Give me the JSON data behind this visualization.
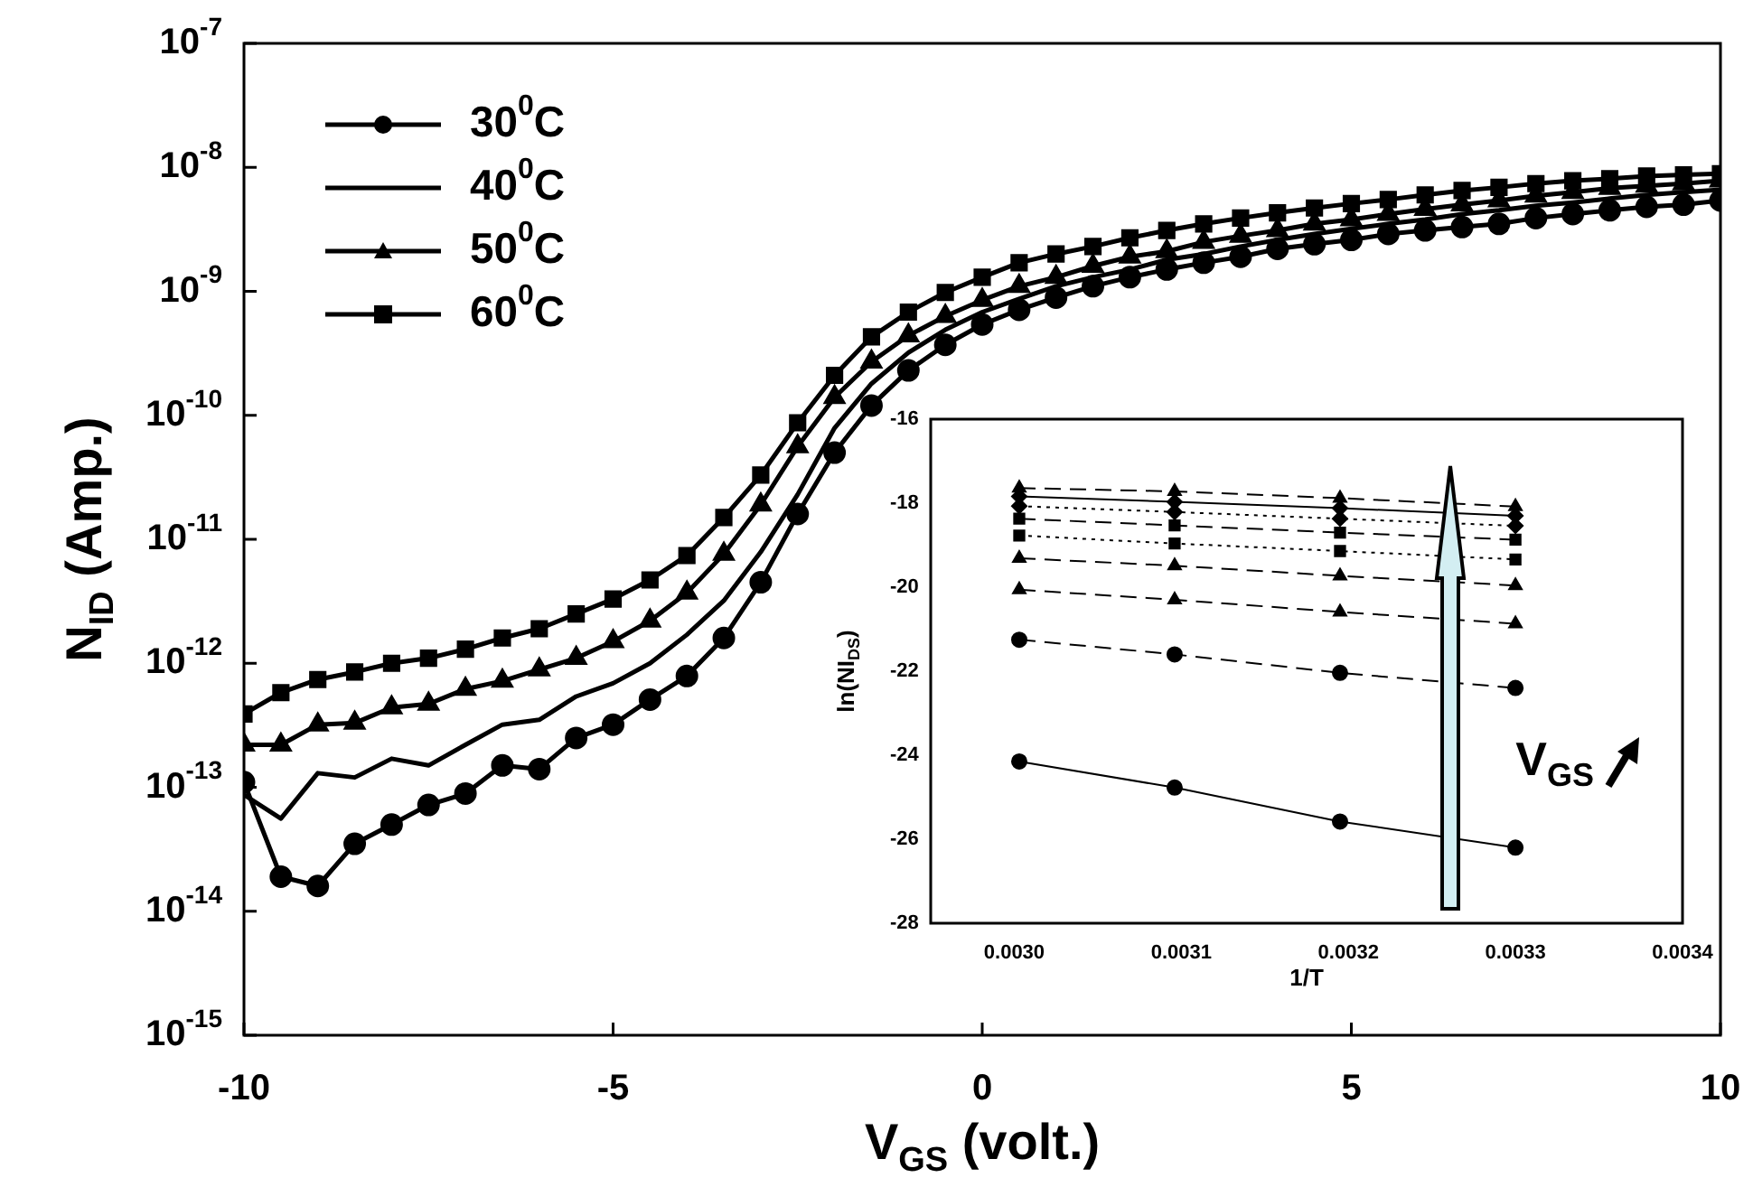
{
  "chart_data": [
    {
      "type": "line",
      "xlabel": "V$_{GS}$ (volt.)",
      "ylabel": "N$_{ID}$ (Amp.)",
      "log": "y",
      "legend": "top left",
      "xlim": [
        -10,
        10
      ],
      "xticks": [
        -10,
        -5,
        0,
        5,
        10
      ],
      "ylim": [
        1e-15,
        1e-07
      ],
      "yticks": [
        {
          "value": 1e-15,
          "label": "10$^{-15}$"
        },
        {
          "value": 1e-14,
          "label": "10$^{-14}$"
        },
        {
          "value": 1e-13,
          "label": "10$^{-13}$"
        },
        {
          "value": 1e-12,
          "label": "10$^{-12}$"
        },
        {
          "value": 1e-11,
          "label": "10$^{-11}$"
        },
        {
          "value": 1e-10,
          "label": "10$^{-10}$"
        },
        {
          "value": 1e-09,
          "label": "10$^{-9}$"
        },
        {
          "value": 1e-08,
          "label": "10$^{-8}$"
        },
        {
          "value": 1e-07,
          "label": "10$^{-7}$"
        }
      ],
      "x": [
        -10,
        -9.5,
        -9,
        -8.5,
        -8,
        -7.5,
        -7,
        -6.5,
        -6,
        -5.5,
        -5,
        -4.5,
        -4,
        -3.5,
        -3,
        -2.5,
        -2,
        -1.5,
        -1,
        -0.5,
        0,
        0.5,
        1,
        1.5,
        2,
        2.5,
        3,
        3.5,
        4,
        4.5,
        5,
        5.5,
        6,
        6.5,
        7,
        7.5,
        8,
        8.5,
        9,
        9.5,
        10
      ],
      "series": [
        {
          "name": "30$^{0}$C",
          "color": "#000000",
          "marker": "circle",
          "values": [
            1.1e-13,
            1.9e-14,
            1.6e-14,
            3.5e-14,
            5e-14,
            7.2e-14,
            8.9e-14,
            1.5e-13,
            1.4e-13,
            2.5e-13,
            3.2e-13,
            5.1e-13,
            7.9e-13,
            1.6e-12,
            4.5e-12,
            1.6e-11,
            5e-11,
            1.2e-10,
            2.3e-10,
            3.7e-10,
            5.4e-10,
            7.1e-10,
            8.9e-10,
            1.1e-09,
            1.3e-09,
            1.5e-09,
            1.7e-09,
            1.9e-09,
            2.2e-09,
            2.4e-09,
            2.6e-09,
            2.9e-09,
            3.1e-09,
            3.3e-09,
            3.5e-09,
            3.9e-09,
            4.2e-09,
            4.5e-09,
            4.8e-09,
            5e-09,
            5.4e-09
          ]
        },
        {
          "name": "40$^{0}$C",
          "color": "#000000",
          "marker": "none",
          "values": [
            8.7e-14,
            5.6e-14,
            1.3e-13,
            1.2e-13,
            1.7e-13,
            1.5e-13,
            2.2e-13,
            3.2e-13,
            3.5e-13,
            5.4e-13,
            6.9e-13,
            1e-12,
            1.7e-12,
            3.2e-12,
            7.9e-12,
            2.3e-11,
            7.9e-11,
            1.8e-10,
            3.2e-10,
            4.9e-10,
            6.8e-10,
            8.7e-10,
            1.1e-09,
            1.3e-09,
            1.5e-09,
            1.8e-09,
            2e-09,
            2.3e-09,
            2.6e-09,
            2.9e-09,
            3.2e-09,
            3.5e-09,
            3.8e-09,
            4.2e-09,
            4.5e-09,
            4.9e-09,
            5.2e-09,
            5.6e-09,
            6e-09,
            6.3e-09,
            6.6e-09
          ]
        },
        {
          "name": "50$^{0}$C",
          "color": "#000000",
          "marker": "triangle",
          "values": [
            2.2e-13,
            2.2e-13,
            3.2e-13,
            3.3e-13,
            4.4e-13,
            4.7e-13,
            6.2e-13,
            7.2e-13,
            8.9e-13,
            1.1e-12,
            1.5e-12,
            2.2e-12,
            3.7e-12,
            7.6e-12,
            1.9e-11,
            5.6e-11,
            1.4e-10,
            2.7e-10,
            4.4e-10,
            6.3e-10,
            8.5e-10,
            1.1e-09,
            1.3e-09,
            1.6e-09,
            1.9e-09,
            2.1e-09,
            2.5e-09,
            2.8e-09,
            3.1e-09,
            3.5e-09,
            3.8e-09,
            4.2e-09,
            4.6e-09,
            5e-09,
            5.4e-09,
            5.9e-09,
            6.3e-09,
            6.8e-09,
            7.1e-09,
            7.4e-09,
            7.8e-09
          ]
        },
        {
          "name": "60$^{0}$C",
          "color": "#000000",
          "marker": "square",
          "values": [
            3.9e-13,
            5.8e-13,
            7.4e-13,
            8.5e-13,
            1e-12,
            1.1e-12,
            1.3e-12,
            1.6e-12,
            1.9e-12,
            2.5e-12,
            3.3e-12,
            4.7e-12,
            7.4e-12,
            1.5e-11,
            3.3e-11,
            8.7e-11,
            2.1e-10,
            4.3e-10,
            6.8e-10,
            9.8e-10,
            1.3e-09,
            1.7e-09,
            2e-09,
            2.3e-09,
            2.7e-09,
            3.1e-09,
            3.5e-09,
            3.9e-09,
            4.3e-09,
            4.7e-09,
            5.1e-09,
            5.5e-09,
            6e-09,
            6.5e-09,
            6.9e-09,
            7.4e-09,
            7.8e-09,
            8.1e-09,
            8.5e-09,
            8.7e-09,
            8.9e-09
          ]
        }
      ]
    },
    {
      "type": "line",
      "xlabel": "1/T",
      "ylabel": "ln(NI$_{DS}$)",
      "annotations": [
        "V$_{GS}$"
      ],
      "xlim": [
        0.00295,
        0.0034
      ],
      "xticks": [
        {
          "value": 0.003,
          "label": "0.0030"
        },
        {
          "value": 0.0031,
          "label": "0.0031"
        },
        {
          "value": 0.0032,
          "label": "0.0032"
        },
        {
          "value": 0.0033,
          "label": "0.0033"
        },
        {
          "value": 0.0034,
          "label": "0.0034"
        }
      ],
      "ylim": [
        -28,
        -16
      ],
      "yticks": [
        -28,
        -26,
        -24,
        -22,
        -20,
        -18,
        -16
      ],
      "x": [
        0.003003,
        0.003096,
        0.003195,
        0.0033
      ],
      "series": [
        {
          "color": "#000000",
          "marker": "circle",
          "line_style": "solid",
          "values": [
            -24.15,
            -24.77,
            -25.58,
            -26.2
          ]
        },
        {
          "color": "#000000",
          "marker": "circle",
          "line_style": "dashed",
          "values": [
            -21.25,
            -21.6,
            -22.04,
            -22.4
          ]
        },
        {
          "color": "#000000",
          "marker": "triangle",
          "line_style": "dashed",
          "values": [
            -20.06,
            -20.3,
            -20.59,
            -20.87
          ]
        },
        {
          "color": "#000000",
          "marker": "triangle",
          "line_style": "dashed",
          "values": [
            -19.31,
            -19.49,
            -19.73,
            -19.96
          ]
        },
        {
          "color": "#000000",
          "marker": "square",
          "line_style": "dotted",
          "values": [
            -18.77,
            -18.96,
            -19.14,
            -19.34
          ]
        },
        {
          "color": "#000000",
          "marker": "square",
          "line_style": "dashed",
          "values": [
            -18.37,
            -18.53,
            -18.7,
            -18.87
          ]
        },
        {
          "color": "#000000",
          "marker": "diamond",
          "line_style": "dotted",
          "values": [
            -18.07,
            -18.21,
            -18.37,
            -18.54
          ]
        },
        {
          "color": "#000000",
          "marker": "diamond",
          "line_style": "solid",
          "values": [
            -17.84,
            -17.97,
            -18.12,
            -18.3
          ]
        },
        {
          "color": "#000000",
          "marker": "triangle",
          "line_style": "dashed",
          "values": [
            -17.64,
            -17.72,
            -17.88,
            -18.08
          ]
        }
      ]
    }
  ]
}
